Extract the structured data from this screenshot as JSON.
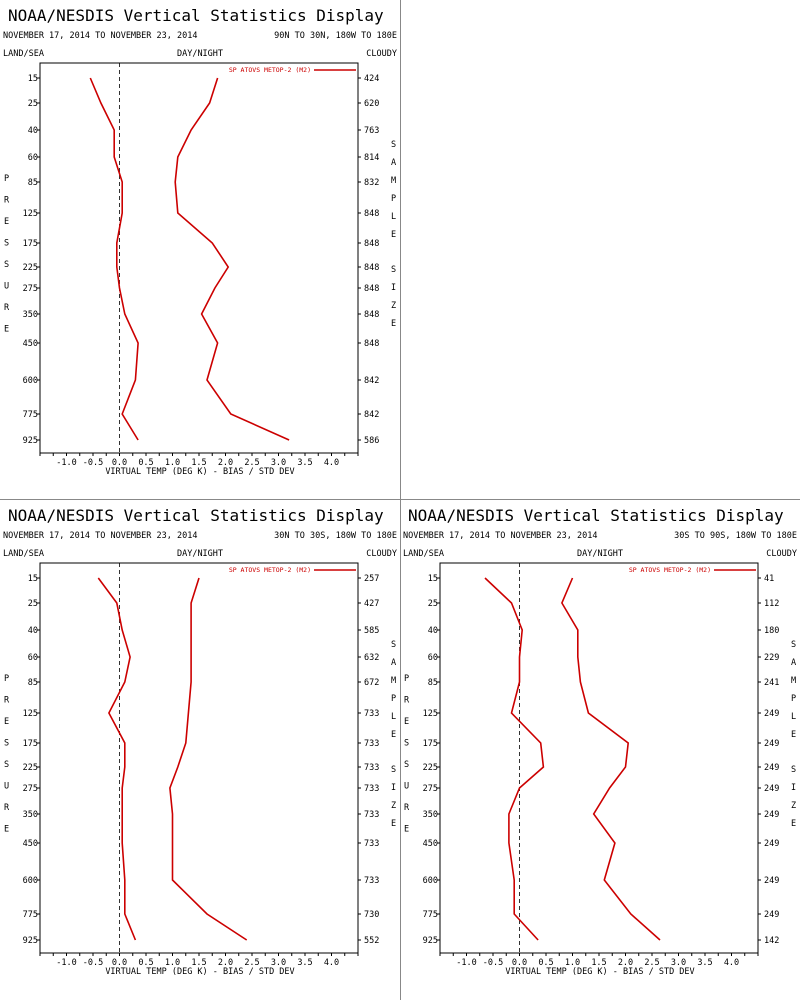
{
  "colors": {
    "series": "#cc0000",
    "axis": "#000000",
    "zero_line": "#000000",
    "divider": "#888888"
  },
  "labels": {
    "left_header": "LAND/SEA",
    "mid_header": "DAY/NIGHT",
    "right_header": "CLOUDY",
    "pressure_vertical": "PRESSURE",
    "sample_vertical": "SAMPLE",
    "size_vertical": "SIZE"
  },
  "chart_data": [
    {
      "type": "line",
      "title": "NOAA/NESDIS Vertical Statistics Display",
      "date_range": "NOVEMBER 17, 2014 TO NOVEMBER 23, 2014",
      "region": "90N TO 30N, 180W TO 180E",
      "xlabel": "VIRTUAL TEMP (DEG K) - BIAS / STD DEV",
      "xlim": [
        -1.5,
        4.5
      ],
      "xticks": [
        "-1.0",
        "-0.5",
        "0.0",
        "0.5",
        "1.0",
        "1.5",
        "2.0",
        "2.5",
        "3.0",
        "3.5",
        "4.0"
      ],
      "y_pressure": [
        "15",
        "25",
        "40",
        "60",
        "85",
        "125",
        "175",
        "225",
        "275",
        "350",
        "450",
        "600",
        "775",
        "925"
      ],
      "sample_size": [
        "424",
        "620",
        "763",
        "814",
        "832",
        "848",
        "848",
        "848",
        "848",
        "848",
        "848",
        "842",
        "842",
        "586"
      ],
      "legend": "SP ATOVS METOP-2 (M2)",
      "zero_line": "dashed",
      "series": [
        {
          "name": "bias",
          "values": [
            -0.55,
            -0.35,
            -0.1,
            -0.1,
            0.05,
            0.05,
            -0.05,
            -0.05,
            0,
            0.1,
            0.35,
            0.3,
            0.05,
            0.35
          ]
        },
        {
          "name": "std_dev",
          "values": [
            1.85,
            1.7,
            1.35,
            1.1,
            1.05,
            1.1,
            1.75,
            2.05,
            1.8,
            1.55,
            1.85,
            1.65,
            2.1,
            3.2
          ]
        }
      ]
    },
    {
      "type": "line",
      "title": "NOAA/NESDIS Vertical Statistics Display",
      "date_range": "NOVEMBER 17, 2014 TO NOVEMBER 23, 2014",
      "region": "30N TO 30S, 180W TO 180E",
      "xlabel": "VIRTUAL TEMP (DEG K) - BIAS / STD DEV",
      "xlim": [
        -1.5,
        4.5
      ],
      "xticks": [
        "-1.0",
        "-0.5",
        "0.0",
        "0.5",
        "1.0",
        "1.5",
        "2.0",
        "2.5",
        "3.0",
        "3.5",
        "4.0"
      ],
      "y_pressure": [
        "15",
        "25",
        "40",
        "60",
        "85",
        "125",
        "175",
        "225",
        "275",
        "350",
        "450",
        "600",
        "775",
        "925"
      ],
      "sample_size": [
        "257",
        "427",
        "585",
        "632",
        "672",
        "733",
        "733",
        "733",
        "733",
        "733",
        "733",
        "733",
        "730",
        "552"
      ],
      "legend": "SP ATOVS METOP-2 (M2)",
      "zero_line": "dashed",
      "series": [
        {
          "name": "bias",
          "values": [
            -0.4,
            -0.05,
            0.05,
            0.2,
            0.1,
            -0.2,
            0.1,
            0.1,
            0.05,
            0.05,
            0.05,
            0.1,
            0.1,
            0.3
          ]
        },
        {
          "name": "std_dev",
          "values": [
            1.5,
            1.35,
            1.35,
            1.35,
            1.35,
            1.3,
            1.25,
            1.1,
            0.95,
            1.0,
            1.0,
            1.0,
            1.65,
            2.4
          ]
        }
      ]
    },
    {
      "type": "line",
      "title": "NOAA/NESDIS Vertical Statistics Display",
      "date_range": "NOVEMBER 17, 2014 TO NOVEMBER 23, 2014",
      "region": "30S TO 90S, 180W TO 180E",
      "xlabel": "VIRTUAL TEMP (DEG K) - BIAS / STD DEV",
      "xlim": [
        -1.5,
        4.5
      ],
      "xticks": [
        "-1.0",
        "-0.5",
        "0.0",
        "0.5",
        "1.0",
        "1.5",
        "2.0",
        "2.5",
        "3.0",
        "3.5",
        "4.0"
      ],
      "y_pressure": [
        "15",
        "25",
        "40",
        "60",
        "85",
        "125",
        "175",
        "225",
        "275",
        "350",
        "450",
        "600",
        "775",
        "925"
      ],
      "sample_size": [
        "41",
        "112",
        "180",
        "229",
        "241",
        "249",
        "249",
        "249",
        "249",
        "249",
        "249",
        "249",
        "249",
        "142"
      ],
      "legend": "SP ATOVS METOP-2 (M2)",
      "zero_line": "dashed",
      "series": [
        {
          "name": "bias",
          "values": [
            -0.65,
            -0.15,
            0.05,
            0.0,
            0.0,
            -0.15,
            0.4,
            0.45,
            0.0,
            -0.2,
            -0.2,
            -0.1,
            -0.1,
            0.35
          ]
        },
        {
          "name": "std_dev",
          "values": [
            1.0,
            0.8,
            1.1,
            1.1,
            1.15,
            1.3,
            2.05,
            2.0,
            1.7,
            1.4,
            1.8,
            1.6,
            2.1,
            2.65
          ]
        }
      ]
    }
  ]
}
